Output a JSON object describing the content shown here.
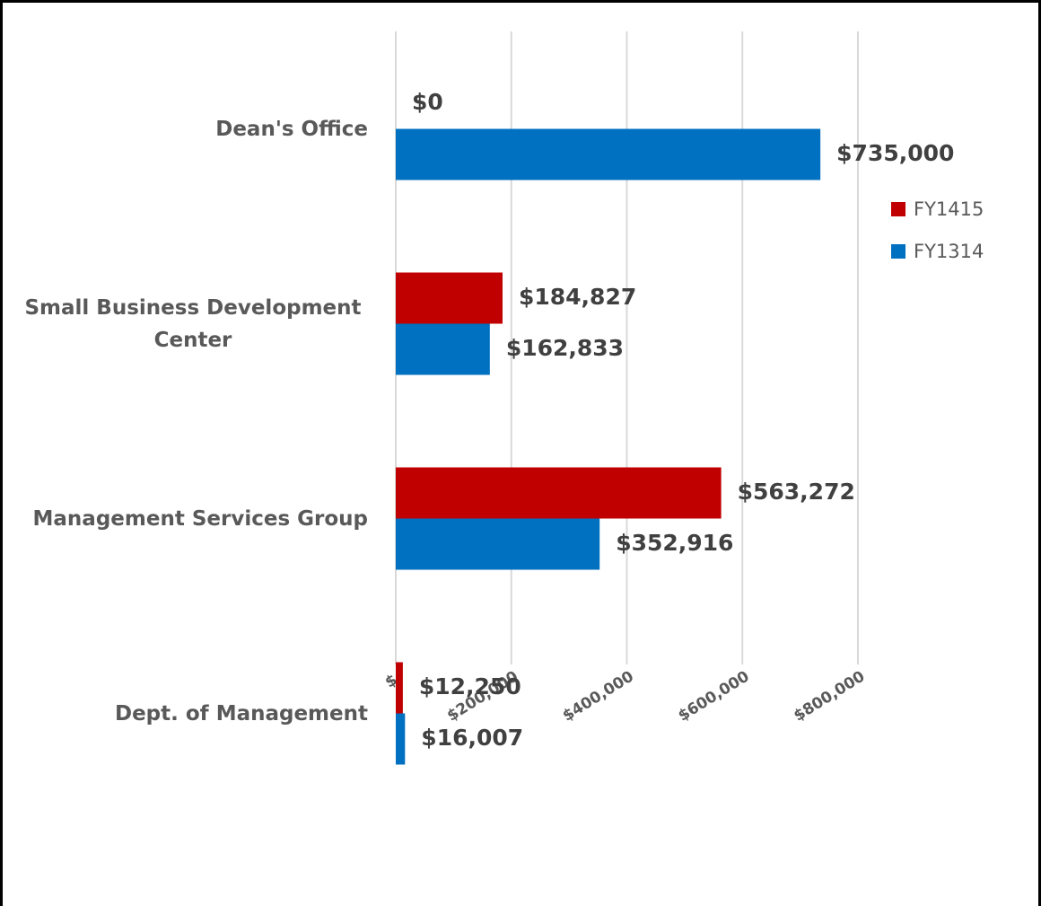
{
  "chart_data": {
    "type": "hbar",
    "categories": [
      "Dean's Office",
      "Small Business Development Center",
      "Management Services Group",
      "Dept. of Management"
    ],
    "series": [
      {
        "name": "FY1415",
        "color": "#c00000",
        "values": [
          0,
          184827,
          563272,
          12250
        ],
        "value_labels": [
          "$0",
          "$184,827",
          "$563,272",
          "$12,250"
        ]
      },
      {
        "name": "FY1314",
        "color": "#0070c0",
        "values": [
          735000,
          162833,
          352916,
          16007
        ],
        "value_labels": [
          "$735,000",
          "$162,833",
          "$352,916",
          "$16,007"
        ]
      }
    ],
    "xlim": [
      0,
      800000
    ],
    "xticks": [
      {
        "value": 0,
        "label": "$-"
      },
      {
        "value": 200000,
        "label": "$200,000"
      },
      {
        "value": 400000,
        "label": "$400,000"
      },
      {
        "value": 600000,
        "label": "$600,000"
      },
      {
        "value": 800000,
        "label": "$800,000"
      }
    ],
    "grid": true,
    "legend": "right"
  }
}
